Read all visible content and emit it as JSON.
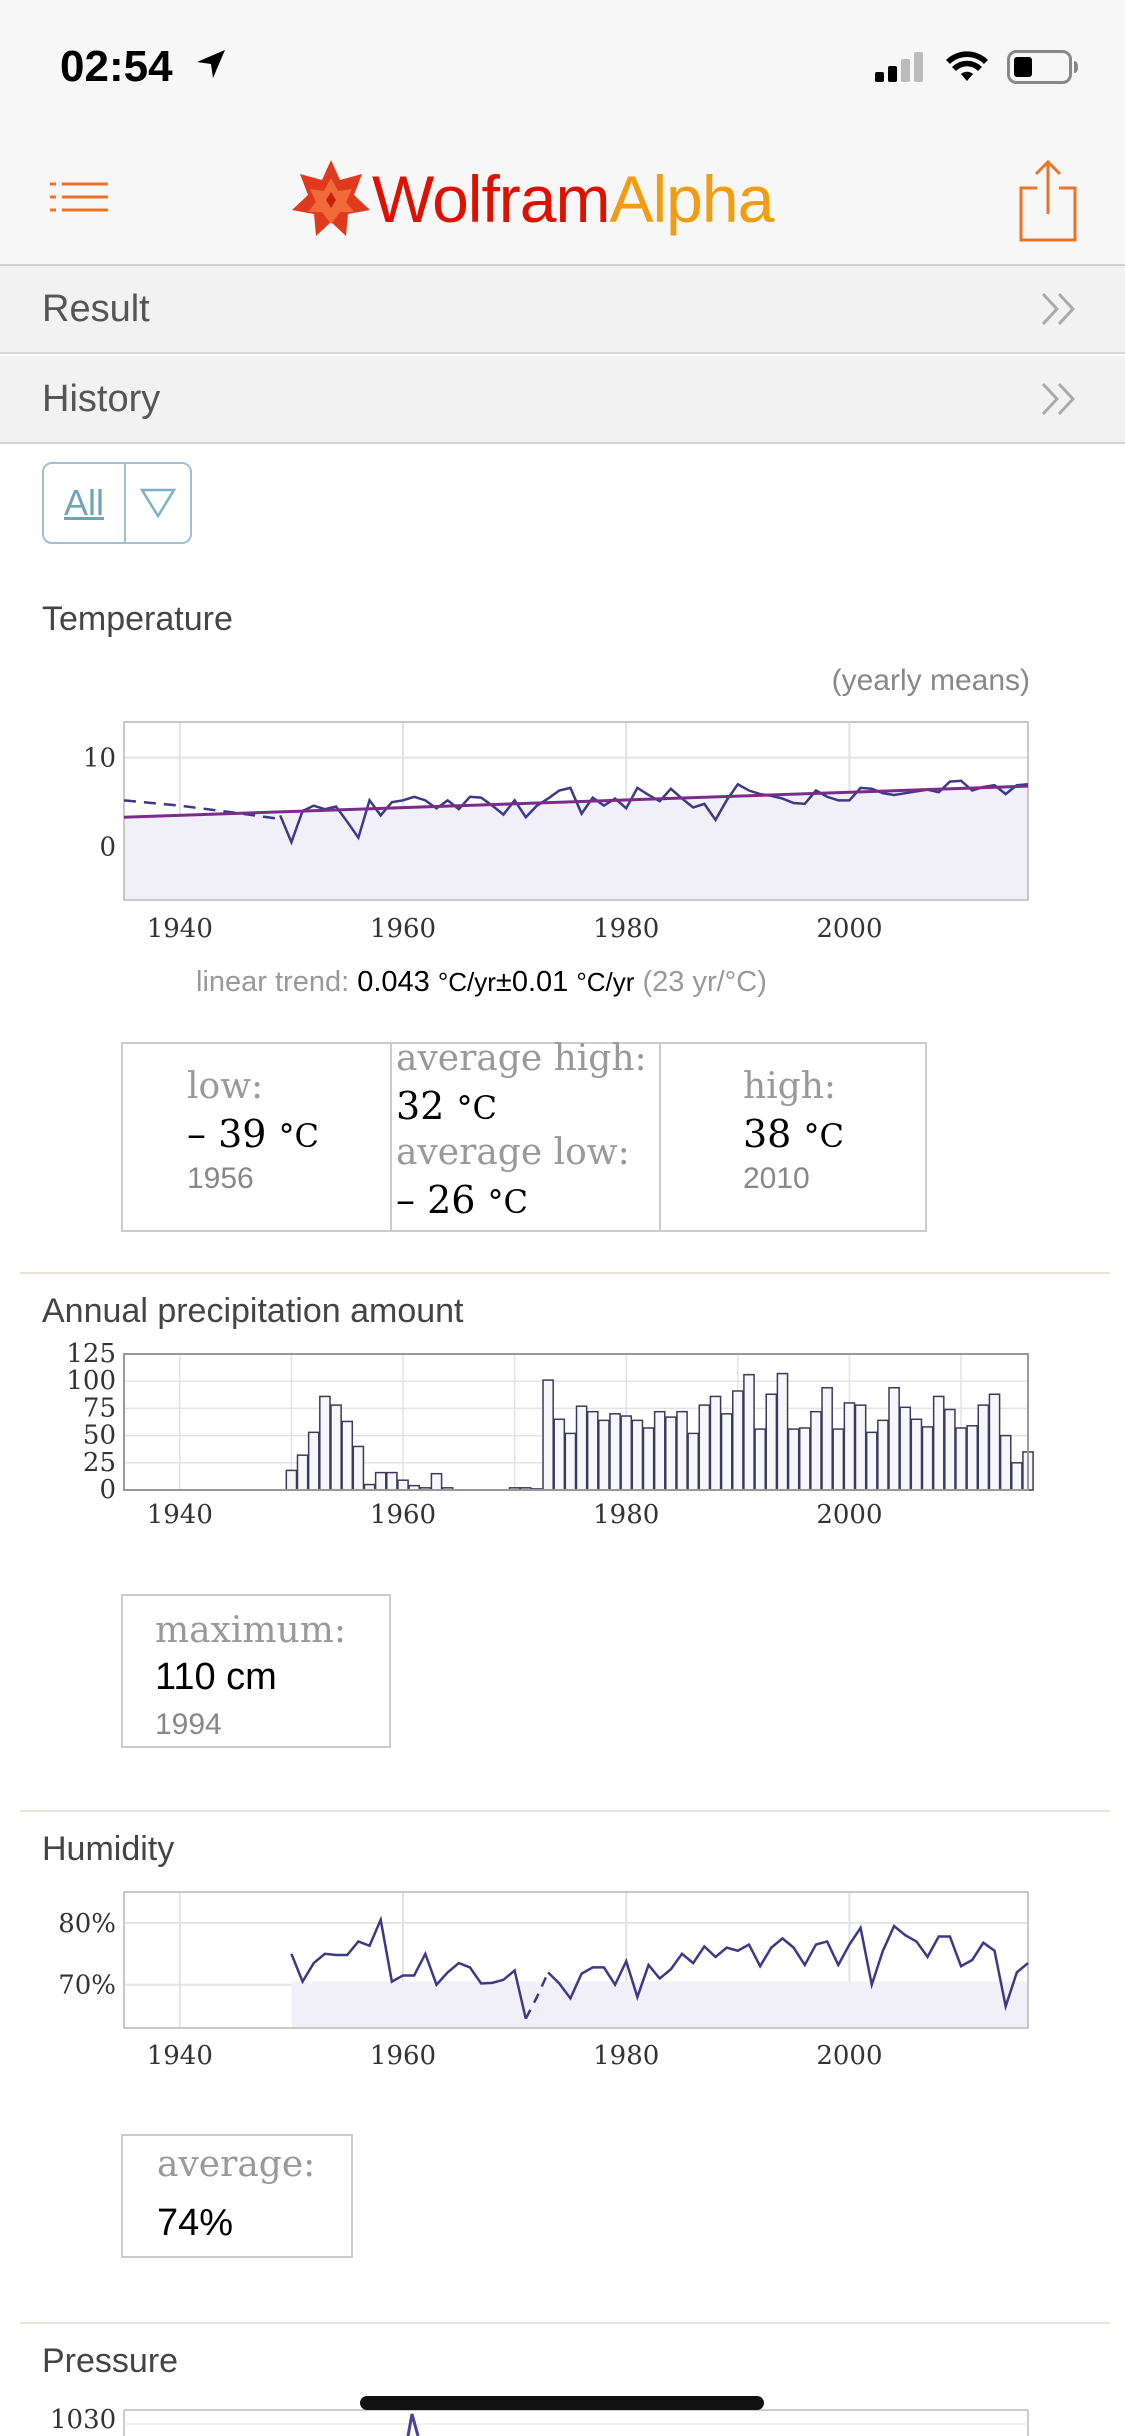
{
  "status": {
    "time": "02:54"
  },
  "app": {
    "logo_part1": "Wolfram",
    "logo_part2": "Alpha"
  },
  "nav": {
    "result_label": "Result",
    "history_label": "History"
  },
  "filter": {
    "label": "All"
  },
  "temperature": {
    "title": "Temperature",
    "note": "(yearly means)",
    "trend_label": "linear trend:",
    "trend_value": "0.043",
    "trend_unit": "°C/yr",
    "trend_pm": "±0.01",
    "trend_unit2": "°C/yr",
    "trend_extra": "(23 yr/°C)",
    "low_label": "low:",
    "low_value": "– 39",
    "low_unit": "°C",
    "low_year": "1956",
    "avg_high_label": "average high:",
    "avg_high_value": "32",
    "avg_high_unit": "°C",
    "avg_low_label": "average low:",
    "avg_low_value": "– 26",
    "avg_low_unit": "°C",
    "high_label": "high:",
    "high_value": "38",
    "high_unit": "°C",
    "high_year": "2010"
  },
  "precipitation": {
    "title": "Annual precipitation amount",
    "max_label": "maximum:",
    "max_value": "110 cm",
    "max_year": "1994"
  },
  "humidity": {
    "title": "Humidity",
    "avg_label": "average:",
    "avg_value": "74%"
  },
  "pressure": {
    "title": "Pressure",
    "first_tick": "1030"
  },
  "chart_data": [
    {
      "type": "line",
      "title": "Temperature",
      "ylim": [
        -6,
        14
      ],
      "xlim": [
        1935,
        2016
      ],
      "yticks": [
        "0",
        "10"
      ],
      "xticks": [
        "1940",
        "1960",
        "1980",
        "2000"
      ],
      "series": [
        {
          "x": [
            1935,
            1940,
            1945,
            1949
          ],
          "values": [
            5.2,
            4.6,
            3.8,
            3.1
          ]
        },
        {
          "x": [
            1949,
            1950,
            1951,
            1952,
            1953,
            1954,
            1955,
            1956,
            1957,
            1958,
            1959,
            1960,
            1961,
            1962,
            1963,
            1964,
            1965,
            1966,
            1967,
            1968,
            1969,
            1970,
            1971,
            1972,
            1973,
            1974,
            1975,
            1976,
            1977,
            1978,
            1979,
            1980,
            1981,
            1982,
            1983,
            1984,
            1985,
            1986,
            1987,
            1988,
            1989,
            1990,
            1991,
            1992,
            1993,
            1994,
            1995,
            1996,
            1997,
            1998,
            1999,
            2000,
            2001,
            2002,
            2003,
            2004,
            2005,
            2006,
            2007,
            2008,
            2009,
            2010,
            2011,
            2012,
            2013,
            2014,
            2015,
            2016
          ],
          "values": [
            3.5,
            0.5,
            4.0,
            4.6,
            4.2,
            4.5,
            2.8,
            1.0,
            5.2,
            3.5,
            5.0,
            5.2,
            5.6,
            5.2,
            4.3,
            5.2,
            4.2,
            5.6,
            5.5,
            4.6,
            3.6,
            5.2,
            3.3,
            4.6,
            5.4,
            6.3,
            6.6,
            3.7,
            5.5,
            4.6,
            5.4,
            4.3,
            6.6,
            5.8,
            5.1,
            6.5,
            5.4,
            4.4,
            4.8,
            3.0,
            5.2,
            7.0,
            6.3,
            5.9,
            5.7,
            5.4,
            4.9,
            4.8,
            6.3,
            5.6,
            5.2,
            5.2,
            6.6,
            6.5,
            6.0,
            5.8,
            6.0,
            6.2,
            6.4,
            6.1,
            7.3,
            7.4,
            6.3,
            6.7,
            6.9,
            5.9,
            6.9,
            7.0
          ]
        },
        {
          "name": "linear trend",
          "x": [
            1935,
            2016
          ],
          "values": [
            3.3,
            6.8
          ]
        }
      ]
    },
    {
      "type": "bar",
      "title": "Annual precipitation amount",
      "ylim": [
        0,
        125
      ],
      "yticks": [
        "0",
        "25",
        "50",
        "75",
        "100",
        "125"
      ],
      "xticks": [
        "1940",
        "1960",
        "1980",
        "2000"
      ],
      "x": [
        1950,
        1951,
        1952,
        1953,
        1954,
        1955,
        1956,
        1957,
        1958,
        1959,
        1960,
        1961,
        1962,
        1963,
        1964,
        1965,
        1966,
        1967,
        1968,
        1969,
        1970,
        1971,
        1972,
        1973,
        1974,
        1975,
        1976,
        1977,
        1978,
        1979,
        1980,
        1981,
        1982,
        1983,
        1984,
        1985,
        1986,
        1987,
        1988,
        1989,
        1990,
        1991,
        1992,
        1993,
        1994,
        1995,
        1996,
        1997,
        1998,
        1999,
        2000,
        2001,
        2002,
        2003,
        2004,
        2005,
        2006,
        2007,
        2008,
        2009,
        2010,
        2011,
        2012,
        2013,
        2014,
        2015,
        2016
      ],
      "values": [
        18,
        32,
        53,
        86,
        78,
        63,
        40,
        5,
        16,
        16,
        9,
        4,
        2,
        15,
        2,
        0,
        0,
        0,
        0,
        0,
        2,
        2,
        1,
        101,
        65,
        52,
        77,
        72,
        64,
        70,
        68,
        64,
        57,
        72,
        67,
        72,
        52,
        78,
        86,
        70,
        91,
        106,
        56,
        88,
        107,
        56,
        57,
        72,
        94,
        56,
        80,
        78,
        53,
        64,
        94,
        76,
        65,
        58,
        86,
        74,
        57,
        59,
        78,
        88,
        50,
        25,
        35
      ]
    },
    {
      "type": "line",
      "title": "Humidity",
      "ylim": [
        63,
        85
      ],
      "yticks": [
        "70%",
        "80%"
      ],
      "xticks": [
        "1940",
        "1960",
        "1980",
        "2000"
      ],
      "series": [
        {
          "x": [
            1950,
            1951,
            1952,
            1953,
            1954,
            1955,
            1956,
            1957,
            1958,
            1959,
            1960,
            1961,
            1962,
            1963,
            1964,
            1965,
            1966,
            1967,
            1968,
            1969,
            1970,
            1971
          ],
          "values": [
            75,
            70.5,
            73.5,
            75,
            74.8,
            74.8,
            77,
            76.3,
            80.5,
            70.5,
            71.5,
            71.5,
            75,
            70,
            72,
            73.5,
            72.8,
            70.2,
            70.3,
            70.8,
            72.3,
            64.5
          ]
        },
        {
          "x": [
            1971,
            1972,
            1973
          ],
          "values": [
            64.5,
            68,
            72
          ]
        },
        {
          "x": [
            1973,
            1974,
            1975,
            1976,
            1977,
            1978,
            1979,
            1980,
            1981,
            1982,
            1983,
            1984,
            1985,
            1986,
            1987,
            1988,
            1989,
            1990,
            1991,
            1992,
            1993,
            1994,
            1995,
            1996,
            1997,
            1998,
            1999,
            2000,
            2001,
            2002,
            2003,
            2004,
            2005,
            2006,
            2007,
            2008,
            2009,
            2010,
            2011,
            2012,
            2013,
            2014,
            2015,
            2016
          ],
          "values": [
            72,
            70.2,
            67.8,
            71.8,
            72.8,
            72.8,
            70,
            73.8,
            68,
            73.2,
            71,
            72.5,
            75,
            73.5,
            76.2,
            74.5,
            76,
            75.5,
            76.5,
            73,
            76,
            77.5,
            76,
            73.2,
            76.5,
            77,
            73.2,
            76.5,
            79.2,
            70,
            75.5,
            79.5,
            78,
            77,
            74.5,
            77.8,
            77.8,
            73,
            74,
            76.8,
            75.5,
            66.5,
            72,
            73.5
          ]
        }
      ]
    }
  ]
}
